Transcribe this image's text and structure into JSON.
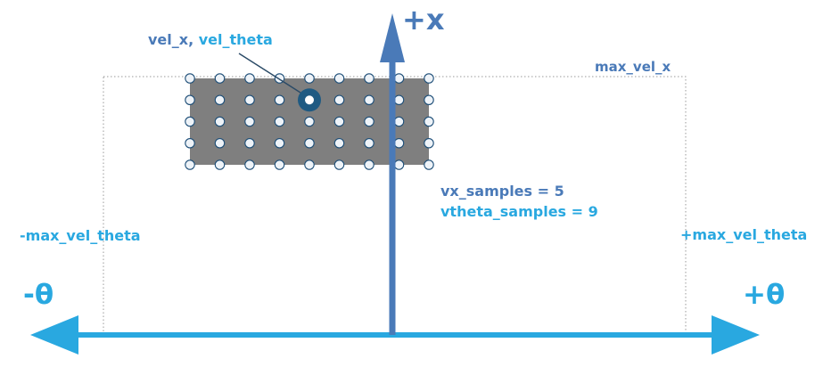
{
  "labels": {
    "plus_x": "+x",
    "max_vel_x": "max_vel_x",
    "vel_x": "vel_x,",
    "vel_theta": "vel_theta",
    "vx_samples": "vx_samples = 5",
    "vtheta_samples": "vtheta_samples = 9",
    "neg_max_vel_theta": "-max_vel_theta",
    "pos_max_vel_theta": "+max_vel_theta",
    "neg_theta": "-θ",
    "pos_theta": "+θ"
  },
  "sampling": {
    "vx_samples": 5,
    "vtheta_samples": 9,
    "selected_sample": {
      "row": 1,
      "col": 4
    }
  },
  "colors": {
    "x_axis": "#4a7ab8",
    "theta_axis": "#29a8e0",
    "sample_window": "#7f7f7f",
    "selected_marker": "#1f5a82",
    "dot_fill": "#eef3f8",
    "dot_stroke": "#1f4f78",
    "bound_box": "#999999"
  }
}
